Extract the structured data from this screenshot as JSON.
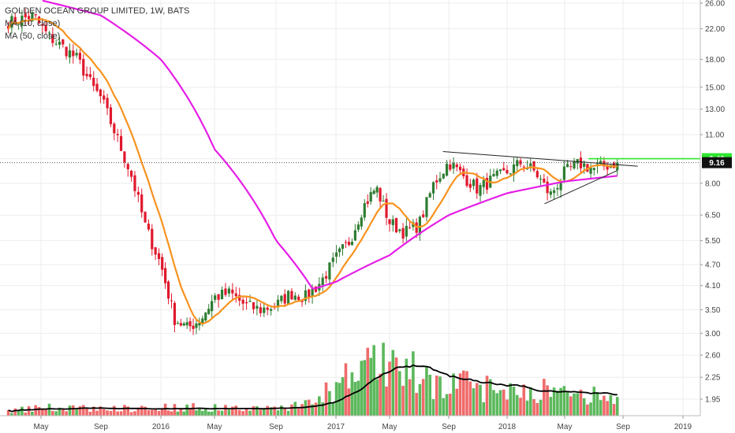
{
  "legend": {
    "title": "GOLDEN OCEAN GROUP LIMITED, 1W, BATS",
    "ma10": "MA (10, close)",
    "ma50": "MA (50, close)"
  },
  "colors": {
    "up": "#2e7d32",
    "down": "#e0182d",
    "vol_up": "#5cb85c",
    "vol_down": "#ef6b6b",
    "ma10": "#f7931e",
    "ma50": "#e61ee6",
    "vol_ma": "#000000",
    "level": "#2ee62e",
    "last_price_bg": "#111111"
  },
  "chart_data": {
    "type": "candlestick",
    "scale": "log",
    "y_ticks": [
      "26.00",
      "22.00",
      "18.00",
      "15.00",
      "13.00",
      "11.00",
      "9.40",
      "8.00",
      "6.50",
      "5.50",
      "4.70",
      "4.10",
      "3.50",
      "3.00",
      "2.60",
      "2.25",
      "1.95"
    ],
    "x_ticks": [
      "May",
      "Sep",
      "2016",
      "May",
      "Sep",
      "2017",
      "May",
      "Sep",
      "2018",
      "May",
      "Sep",
      "2019"
    ],
    "x_tick_dates": [
      "2015-05-01",
      "2015-09-01",
      "2016-01-01",
      "2016-05-01",
      "2016-09-01",
      "2017-01-01",
      "2017-05-01",
      "2017-09-01",
      "2018-01-01",
      "2018-05-01",
      "2018-09-01",
      "2019-01-01"
    ],
    "last_price": "9.16",
    "resistance_level": "9.40",
    "closes_anchor": [
      [
        "2015-03-01",
        23.0
      ],
      [
        "2015-04-15",
        24.0
      ],
      [
        "2015-05-15",
        21.0
      ],
      [
        "2015-06-15",
        19.5
      ],
      [
        "2015-07-15",
        18.0
      ],
      [
        "2015-08-15",
        15.0
      ],
      [
        "2015-09-01",
        14.0
      ],
      [
        "2015-10-01",
        11.0
      ],
      [
        "2015-11-01",
        8.5
      ],
      [
        "2015-12-01",
        6.0
      ],
      [
        "2016-01-01",
        4.7
      ],
      [
        "2016-02-01",
        3.3
      ],
      [
        "2016-03-01",
        3.1
      ],
      [
        "2016-04-01",
        3.3
      ],
      [
        "2016-05-01",
        3.8
      ],
      [
        "2016-06-01",
        3.9
      ],
      [
        "2016-07-01",
        3.6
      ],
      [
        "2016-08-01",
        3.5
      ],
      [
        "2016-09-01",
        3.6
      ],
      [
        "2016-10-01",
        3.9
      ],
      [
        "2016-11-01",
        3.8
      ],
      [
        "2016-12-01",
        4.2
      ],
      [
        "2017-01-01",
        4.9
      ],
      [
        "2017-02-01",
        5.5
      ],
      [
        "2017-03-01",
        6.8
      ],
      [
        "2017-04-01",
        7.8
      ],
      [
        "2017-05-01",
        6.2
      ],
      [
        "2017-06-01",
        5.8
      ],
      [
        "2017-07-01",
        6.1
      ],
      [
        "2017-08-01",
        8.0
      ],
      [
        "2017-09-01",
        9.2
      ],
      [
        "2017-10-01",
        8.4
      ],
      [
        "2017-11-01",
        7.7
      ],
      [
        "2017-12-01",
        8.2
      ],
      [
        "2018-01-01",
        8.6
      ],
      [
        "2018-02-01",
        9.2
      ],
      [
        "2018-03-01",
        8.6
      ],
      [
        "2018-04-01",
        7.4
      ],
      [
        "2018-05-01",
        8.6
      ],
      [
        "2018-06-01",
        9.1
      ],
      [
        "2018-07-01",
        8.8
      ],
      [
        "2018-08-20",
        9.16
      ]
    ],
    "ma50_anchor": [
      [
        "2015-05-01",
        26.5
      ],
      [
        "2015-09-01",
        24.0
      ],
      [
        "2016-01-01",
        18.0
      ],
      [
        "2016-05-01",
        10.0
      ],
      [
        "2016-09-01",
        5.5
      ],
      [
        "2016-11-15",
        4.0
      ],
      [
        "2017-01-01",
        4.2
      ],
      [
        "2017-05-01",
        5.0
      ],
      [
        "2017-09-01",
        6.5
      ],
      [
        "2018-01-01",
        7.5
      ],
      [
        "2018-05-01",
        8.1
      ],
      [
        "2018-08-20",
        8.4
      ]
    ],
    "volume_anchor": [
      [
        "2015-03-01",
        4
      ],
      [
        "2015-06-01",
        6
      ],
      [
        "2015-09-01",
        5
      ],
      [
        "2016-01-01",
        6
      ],
      [
        "2016-04-01",
        6
      ],
      [
        "2016-08-01",
        5
      ],
      [
        "2016-11-01",
        8
      ],
      [
        "2017-01-01",
        20
      ],
      [
        "2017-03-01",
        35
      ],
      [
        "2017-05-01",
        40
      ],
      [
        "2017-07-01",
        28
      ],
      [
        "2017-09-01",
        22
      ],
      [
        "2018-01-01",
        20
      ],
      [
        "2018-04-01",
        18
      ],
      [
        "2018-06-01",
        15
      ],
      [
        "2018-08-20",
        12
      ]
    ]
  }
}
